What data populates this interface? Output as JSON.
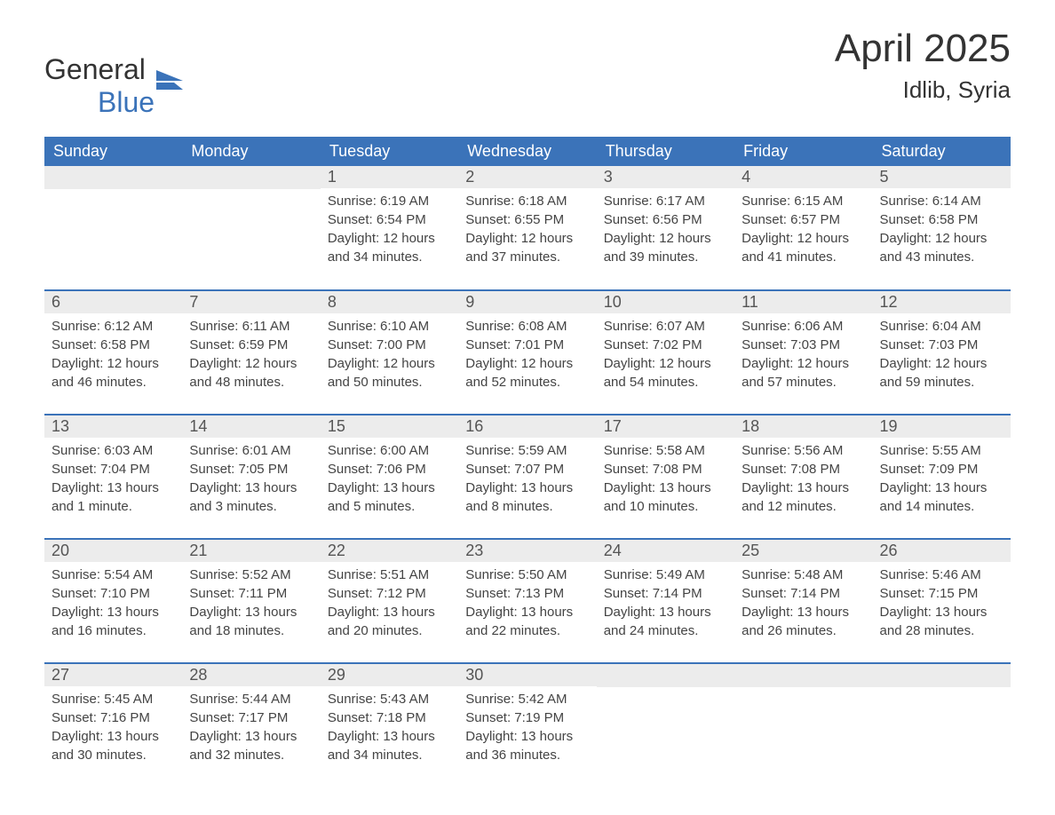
{
  "logo": {
    "part1": "General",
    "part2": "Blue"
  },
  "title": "April 2025",
  "location": "Idlib, Syria",
  "colors": {
    "header_bg": "#3b73b9",
    "header_text": "#ffffff",
    "daynum_bg": "#ececec",
    "text": "#333333",
    "logo_blue": "#3b73b9"
  },
  "day_headers": [
    "Sunday",
    "Monday",
    "Tuesday",
    "Wednesday",
    "Thursday",
    "Friday",
    "Saturday"
  ],
  "weeks": [
    [
      null,
      null,
      {
        "n": "1",
        "sr": "Sunrise: 6:19 AM",
        "ss": "Sunset: 6:54 PM",
        "dl": "Daylight: 12 hours and 34 minutes."
      },
      {
        "n": "2",
        "sr": "Sunrise: 6:18 AM",
        "ss": "Sunset: 6:55 PM",
        "dl": "Daylight: 12 hours and 37 minutes."
      },
      {
        "n": "3",
        "sr": "Sunrise: 6:17 AM",
        "ss": "Sunset: 6:56 PM",
        "dl": "Daylight: 12 hours and 39 minutes."
      },
      {
        "n": "4",
        "sr": "Sunrise: 6:15 AM",
        "ss": "Sunset: 6:57 PM",
        "dl": "Daylight: 12 hours and 41 minutes."
      },
      {
        "n": "5",
        "sr": "Sunrise: 6:14 AM",
        "ss": "Sunset: 6:58 PM",
        "dl": "Daylight: 12 hours and 43 minutes."
      }
    ],
    [
      {
        "n": "6",
        "sr": "Sunrise: 6:12 AM",
        "ss": "Sunset: 6:58 PM",
        "dl": "Daylight: 12 hours and 46 minutes."
      },
      {
        "n": "7",
        "sr": "Sunrise: 6:11 AM",
        "ss": "Sunset: 6:59 PM",
        "dl": "Daylight: 12 hours and 48 minutes."
      },
      {
        "n": "8",
        "sr": "Sunrise: 6:10 AM",
        "ss": "Sunset: 7:00 PM",
        "dl": "Daylight: 12 hours and 50 minutes."
      },
      {
        "n": "9",
        "sr": "Sunrise: 6:08 AM",
        "ss": "Sunset: 7:01 PM",
        "dl": "Daylight: 12 hours and 52 minutes."
      },
      {
        "n": "10",
        "sr": "Sunrise: 6:07 AM",
        "ss": "Sunset: 7:02 PM",
        "dl": "Daylight: 12 hours and 54 minutes."
      },
      {
        "n": "11",
        "sr": "Sunrise: 6:06 AM",
        "ss": "Sunset: 7:03 PM",
        "dl": "Daylight: 12 hours and 57 minutes."
      },
      {
        "n": "12",
        "sr": "Sunrise: 6:04 AM",
        "ss": "Sunset: 7:03 PM",
        "dl": "Daylight: 12 hours and 59 minutes."
      }
    ],
    [
      {
        "n": "13",
        "sr": "Sunrise: 6:03 AM",
        "ss": "Sunset: 7:04 PM",
        "dl": "Daylight: 13 hours and 1 minute."
      },
      {
        "n": "14",
        "sr": "Sunrise: 6:01 AM",
        "ss": "Sunset: 7:05 PM",
        "dl": "Daylight: 13 hours and 3 minutes."
      },
      {
        "n": "15",
        "sr": "Sunrise: 6:00 AM",
        "ss": "Sunset: 7:06 PM",
        "dl": "Daylight: 13 hours and 5 minutes."
      },
      {
        "n": "16",
        "sr": "Sunrise: 5:59 AM",
        "ss": "Sunset: 7:07 PM",
        "dl": "Daylight: 13 hours and 8 minutes."
      },
      {
        "n": "17",
        "sr": "Sunrise: 5:58 AM",
        "ss": "Sunset: 7:08 PM",
        "dl": "Daylight: 13 hours and 10 minutes."
      },
      {
        "n": "18",
        "sr": "Sunrise: 5:56 AM",
        "ss": "Sunset: 7:08 PM",
        "dl": "Daylight: 13 hours and 12 minutes."
      },
      {
        "n": "19",
        "sr": "Sunrise: 5:55 AM",
        "ss": "Sunset: 7:09 PM",
        "dl": "Daylight: 13 hours and 14 minutes."
      }
    ],
    [
      {
        "n": "20",
        "sr": "Sunrise: 5:54 AM",
        "ss": "Sunset: 7:10 PM",
        "dl": "Daylight: 13 hours and 16 minutes."
      },
      {
        "n": "21",
        "sr": "Sunrise: 5:52 AM",
        "ss": "Sunset: 7:11 PM",
        "dl": "Daylight: 13 hours and 18 minutes."
      },
      {
        "n": "22",
        "sr": "Sunrise: 5:51 AM",
        "ss": "Sunset: 7:12 PM",
        "dl": "Daylight: 13 hours and 20 minutes."
      },
      {
        "n": "23",
        "sr": "Sunrise: 5:50 AM",
        "ss": "Sunset: 7:13 PM",
        "dl": "Daylight: 13 hours and 22 minutes."
      },
      {
        "n": "24",
        "sr": "Sunrise: 5:49 AM",
        "ss": "Sunset: 7:14 PM",
        "dl": "Daylight: 13 hours and 24 minutes."
      },
      {
        "n": "25",
        "sr": "Sunrise: 5:48 AM",
        "ss": "Sunset: 7:14 PM",
        "dl": "Daylight: 13 hours and 26 minutes."
      },
      {
        "n": "26",
        "sr": "Sunrise: 5:46 AM",
        "ss": "Sunset: 7:15 PM",
        "dl": "Daylight: 13 hours and 28 minutes."
      }
    ],
    [
      {
        "n": "27",
        "sr": "Sunrise: 5:45 AM",
        "ss": "Sunset: 7:16 PM",
        "dl": "Daylight: 13 hours and 30 minutes."
      },
      {
        "n": "28",
        "sr": "Sunrise: 5:44 AM",
        "ss": "Sunset: 7:17 PM",
        "dl": "Daylight: 13 hours and 32 minutes."
      },
      {
        "n": "29",
        "sr": "Sunrise: 5:43 AM",
        "ss": "Sunset: 7:18 PM",
        "dl": "Daylight: 13 hours and 34 minutes."
      },
      {
        "n": "30",
        "sr": "Sunrise: 5:42 AM",
        "ss": "Sunset: 7:19 PM",
        "dl": "Daylight: 13 hours and 36 minutes."
      },
      null,
      null,
      null
    ]
  ]
}
